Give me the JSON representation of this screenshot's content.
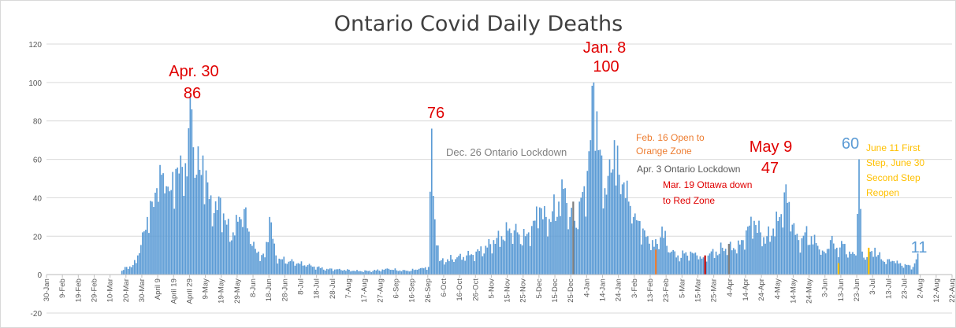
{
  "chart_data": {
    "type": "bar",
    "title": "Ontario Covid Daily Deaths",
    "xlabel": "",
    "ylabel": "",
    "ylim": [
      -20,
      120
    ],
    "yticks": [
      -20,
      0,
      20,
      40,
      60,
      80,
      100,
      120
    ],
    "x_start": "2020-01-30",
    "x_end": "2021-08-22",
    "categories": [
      "30-Jan",
      "9-Feb",
      "19-Feb",
      "29-Feb",
      "10-Mar",
      "20-Mar",
      "30-Mar",
      "April 9",
      "April 19",
      "April 29",
      "9-May",
      "19-May",
      "29-May",
      "8-Jun",
      "18-Jun",
      "28-Jun",
      "8-Jul",
      "18-Jul",
      "28-Jul",
      "7-Aug",
      "17-Aug",
      "27-Aug",
      "6-Sep",
      "16-Sep",
      "26-Sep",
      "6-Oct",
      "16-Oct",
      "26-Oct",
      "5-Nov",
      "15-Nov",
      "25-Nov",
      "5-Dec",
      "15-Dec",
      "25-Dec",
      "4-Jan",
      "14-Jan",
      "24-Jan",
      "3-Feb",
      "13-Feb",
      "23-Feb",
      "5-Mar",
      "15-Mar",
      "25-Mar",
      "4-Apr",
      "14-Apr",
      "24-Apr",
      "4-May",
      "14-May",
      "24-May",
      "3-Jun",
      "13-Jun",
      "23-Jun",
      "3-Jul",
      "13-Jul",
      "23-Jul",
      "2-Aug",
      "12-Aug",
      "22-Aug"
    ],
    "series": [
      {
        "color": "#5b9bd5",
        "x": [
          "2020-03-17",
          "2020-03-20",
          "2020-03-24",
          "2020-03-27",
          "2020-03-30",
          "2020-04-02",
          "2020-04-05",
          "2020-04-08",
          "2020-04-11",
          "2020-04-14",
          "2020-04-17",
          "2020-04-20",
          "2020-04-23",
          "2020-04-26",
          "2020-04-30",
          "2020-05-03",
          "2020-05-07",
          "2020-05-10",
          "2020-05-14",
          "2020-05-18",
          "2020-05-22",
          "2020-05-26",
          "2020-05-30",
          "2020-06-03",
          "2020-06-07",
          "2020-06-11",
          "2020-06-15",
          "2020-06-18",
          "2020-06-22",
          "2020-06-26",
          "2020-07-01",
          "2020-07-06",
          "2020-07-12",
          "2020-07-18",
          "2020-07-24",
          "2020-08-01",
          "2020-08-10",
          "2020-08-20",
          "2020-09-01",
          "2020-09-12",
          "2020-09-20",
          "2020-09-26",
          "2020-09-28",
          "2020-09-29",
          "2020-10-03",
          "2020-10-08",
          "2020-10-14",
          "2020-10-20",
          "2020-10-26",
          "2020-11-01",
          "2020-11-06",
          "2020-11-11",
          "2020-11-16",
          "2020-11-21",
          "2020-11-26",
          "2020-12-01",
          "2020-12-05",
          "2020-12-09",
          "2020-12-13",
          "2020-12-17",
          "2020-12-21",
          "2020-12-24",
          "2020-12-27",
          "2020-12-30",
          "2021-01-02",
          "2021-01-04",
          "2021-01-06",
          "2021-01-08",
          "2021-01-10",
          "2021-01-12",
          "2021-01-15",
          "2021-01-18",
          "2021-01-21",
          "2021-01-24",
          "2021-01-27",
          "2021-01-30",
          "2021-02-02",
          "2021-02-05",
          "2021-02-08",
          "2021-02-11",
          "2021-02-14",
          "2021-02-17",
          "2021-02-20",
          "2021-02-23",
          "2021-02-26",
          "2021-03-02",
          "2021-03-06",
          "2021-03-10",
          "2021-03-14",
          "2021-03-18",
          "2021-03-22",
          "2021-03-26",
          "2021-03-30",
          "2021-04-03",
          "2021-04-07",
          "2021-04-11",
          "2021-04-15",
          "2021-04-19",
          "2021-04-23",
          "2021-04-27",
          "2021-05-01",
          "2021-05-05",
          "2021-05-09",
          "2021-05-13",
          "2021-05-17",
          "2021-05-21",
          "2021-05-25",
          "2021-05-29",
          "2021-06-02",
          "2021-06-06",
          "2021-06-10",
          "2021-06-14",
          "2021-06-18",
          "2021-06-22",
          "2021-06-24",
          "2021-06-26",
          "2021-06-30",
          "2021-07-04",
          "2021-07-08",
          "2021-07-12",
          "2021-07-16",
          "2021-07-20",
          "2021-07-24",
          "2021-07-28",
          "2021-07-31"
        ],
        "values": [
          2,
          4,
          5,
          10,
          22,
          30,
          38,
          45,
          52,
          46,
          44,
          55,
          62,
          58,
          86,
          52,
          62,
          48,
          32,
          40,
          26,
          22,
          30,
          35,
          15,
          12,
          9,
          30,
          10,
          8,
          7,
          6,
          5,
          4,
          3,
          3,
          2,
          2,
          3,
          2,
          3,
          4,
          76,
          41,
          7,
          8,
          9,
          10,
          12,
          15,
          18,
          20,
          24,
          22,
          20,
          28,
          35,
          30,
          33,
          38,
          45,
          30,
          28,
          38,
          46,
          54,
          70,
          100,
          85,
          65,
          45,
          60,
          70,
          52,
          48,
          38,
          30,
          28,
          24,
          20,
          18,
          16,
          25,
          15,
          12,
          10,
          11,
          12,
          10,
          9,
          11,
          12,
          14,
          16,
          13,
          18,
          25,
          28,
          22,
          20,
          24,
          30,
          47,
          26,
          18,
          22,
          20,
          15,
          12,
          18,
          14,
          16,
          12,
          10,
          60,
          12,
          9,
          14,
          8,
          8,
          7,
          6,
          5,
          4,
          11
        ]
      }
    ],
    "markers": [
      {
        "date": "2020-12-26",
        "value": 38,
        "color": "#7f7f7f"
      },
      {
        "date": "2021-02-16",
        "value": 13,
        "color": "#ed7d31"
      },
      {
        "date": "2021-03-19",
        "value": 10,
        "color": "#c00000"
      },
      {
        "date": "2021-04-03",
        "value": 16,
        "color": "#7f7f7f"
      },
      {
        "date": "2021-06-11",
        "value": 6,
        "color": "#ffc000"
      },
      {
        "date": "2021-06-30",
        "value": 14,
        "color": "#ffc000"
      }
    ],
    "annotations": [
      {
        "text": "Apr. 30",
        "color": "#e00000",
        "size": 20
      },
      {
        "text": "86",
        "color": "#e00000",
        "size": 20
      },
      {
        "text": "76",
        "color": "#e00000",
        "size": 20
      },
      {
        "text": "Jan. 8",
        "color": "#e00000",
        "size": 20
      },
      {
        "text": "100",
        "color": "#e00000",
        "size": 20
      },
      {
        "text": "Dec. 26 Ontario Lockdown",
        "color": "#7f7f7f",
        "size": 13
      },
      {
        "text": "Feb. 16 Open to",
        "color": "#ed7d31",
        "size": 12
      },
      {
        "text": "Orange Zone",
        "color": "#ed7d31",
        "size": 12
      },
      {
        "text": "Apr. 3 Ontario Lockdown",
        "color": "#595959",
        "size": 12
      },
      {
        "text": "Mar. 19 Ottawa down",
        "color": "#e00000",
        "size": 12
      },
      {
        "text": "to Red Zone",
        "color": "#e00000",
        "size": 12
      },
      {
        "text": "May 9",
        "color": "#e00000",
        "size": 20
      },
      {
        "text": "47",
        "color": "#e00000",
        "size": 20
      },
      {
        "text": "60",
        "color": "#5b9bd5",
        "size": 20
      },
      {
        "text": "June 11 First",
        "color": "#ffc000",
        "size": 12
      },
      {
        "text": "Step, June 30",
        "color": "#ffc000",
        "size": 12
      },
      {
        "text": "Second Step",
        "color": "#ffc000",
        "size": 12
      },
      {
        "text": "Reopen",
        "color": "#ffc000",
        "size": 12
      },
      {
        "text": "11",
        "color": "#5b9bd5",
        "size": 20
      }
    ],
    "grid": true,
    "legend": "none"
  }
}
